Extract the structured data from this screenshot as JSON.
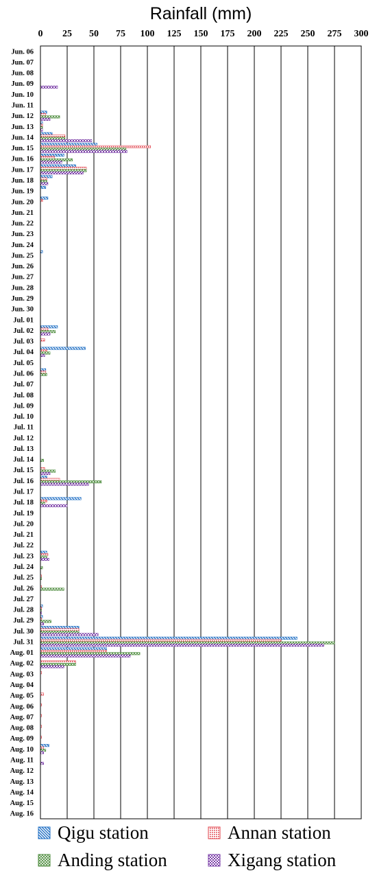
{
  "chart_data": {
    "type": "bar",
    "orientation": "horizontal",
    "title": "Rainfall (mm)",
    "xlabel": "Rainfall (mm)",
    "ylabel": "",
    "xlim": [
      0,
      300
    ],
    "x_ticks": [
      0,
      25,
      50,
      75,
      100,
      125,
      150,
      175,
      200,
      225,
      250,
      275,
      300
    ],
    "x_axis_position": "top",
    "grid": "vertical lines at every 25 mm",
    "legend_position": "bottom",
    "categories": [
      "Jun. 06",
      "Jun. 07",
      "Jun. 08",
      "Jun. 09",
      "Jun. 10",
      "Jun. 11",
      "Jun. 12",
      "Jun. 13",
      "Jun. 14",
      "Jun. 15",
      "Jun. 16",
      "Jun. 17",
      "Jun. 18",
      "Jun. 19",
      "Jun. 20",
      "Jun. 21",
      "Jun. 22",
      "Jun. 23",
      "Jun. 24",
      "Jun. 25",
      "Jun. 26",
      "Jun. 27",
      "Jun. 28",
      "Jun. 29",
      "Jun. 30",
      "Jul. 01",
      "Jul. 02",
      "Jul. 03",
      "Jul. 04",
      "Jul. 05",
      "Jul. 06",
      "Jul. 07",
      "Jul. 08",
      "Jul. 09",
      "Jul. 10",
      "Jul. 11",
      "Jul. 12",
      "Jul. 13",
      "Jul. 14",
      "Jul. 15",
      "Jul. 16",
      "Jul. 17",
      "Jul. 18",
      "Jul. 19",
      "Jul. 20",
      "Jul. 21",
      "Jul. 22",
      "Jul. 23",
      "Jul. 24",
      "Jul. 25",
      "Jul. 26",
      "Jul. 27",
      "Jul. 28",
      "Jul. 29",
      "Jul. 30",
      "Jul. 31",
      "Aug. 01",
      "Aug. 02",
      "Aug. 03",
      "Aug. 04",
      "Aug. 05",
      "Aug. 06",
      "Aug. 07",
      "Aug. 08",
      "Aug. 09",
      "Aug. 10",
      "Aug. 11",
      "Aug. 12",
      "Aug. 13",
      "Aug. 14",
      "Aug. 15",
      "Aug. 16"
    ],
    "series": [
      {
        "name": "Qigu station",
        "color": "#1f6fc4",
        "pattern": "diagonal-hatch",
        "values": [
          0,
          0,
          0,
          0,
          0,
          0,
          6,
          2,
          11,
          53,
          22,
          33,
          11,
          5,
          7,
          0,
          0,
          0,
          0,
          2,
          0,
          0,
          0,
          0,
          0,
          0,
          16,
          0,
          42,
          0,
          5,
          0,
          0,
          0,
          0,
          0,
          0,
          0,
          0,
          0,
          6,
          0,
          38,
          0,
          0,
          0,
          0,
          6,
          0,
          0,
          0,
          0,
          2,
          2,
          36,
          240,
          62,
          0,
          0,
          0,
          0,
          0,
          0,
          0,
          0,
          8,
          0,
          0,
          0,
          0,
          0,
          0
        ]
      },
      {
        "name": "Annan station",
        "color": "#e0404a",
        "pattern": "dots",
        "values": [
          0,
          0,
          0,
          0,
          0,
          0,
          5,
          2,
          23,
          103,
          13,
          43,
          6,
          0,
          2,
          0,
          0,
          0,
          0,
          0,
          0,
          0,
          0,
          0,
          0,
          0,
          7,
          4,
          6,
          0,
          5,
          0,
          0,
          0,
          0,
          0,
          0,
          0,
          0,
          4,
          18,
          0,
          6,
          0,
          0,
          0,
          0,
          7,
          0,
          1,
          1,
          0,
          1,
          1,
          36,
          225,
          62,
          33,
          1,
          0,
          3,
          1,
          1,
          1,
          1,
          3,
          0,
          0,
          0,
          0,
          0,
          0
        ]
      },
      {
        "name": "Anding station",
        "color": "#4a8a3a",
        "pattern": "crosshatch",
        "values": [
          0,
          0,
          0,
          0,
          0,
          0,
          18,
          2,
          23,
          80,
          30,
          43,
          6,
          0,
          0,
          0,
          0,
          0,
          0,
          0,
          0,
          0,
          0,
          0,
          0,
          0,
          14,
          0,
          9,
          0,
          6,
          0,
          0,
          0,
          0,
          0,
          0,
          0,
          3,
          14,
          57,
          0,
          4,
          0,
          0,
          0,
          0,
          6,
          2,
          1,
          22,
          0,
          1,
          10,
          36,
          275,
          93,
          33,
          0,
          0,
          0,
          0,
          0,
          0,
          0,
          5,
          0,
          0,
          0,
          0,
          0,
          0
        ]
      },
      {
        "name": "Xigang station",
        "color": "#7b3fa8",
        "pattern": "checker",
        "values": [
          0,
          0,
          0,
          16,
          0,
          0,
          9,
          2,
          48,
          81,
          20,
          40,
          7,
          0,
          0,
          0,
          0,
          0,
          0,
          0,
          0,
          0,
          0,
          0,
          0,
          0,
          9,
          0,
          4,
          0,
          0,
          0,
          0,
          0,
          0,
          0,
          0,
          0,
          0,
          9,
          45,
          0,
          25,
          0,
          0,
          0,
          0,
          8,
          0,
          0,
          0,
          0,
          1,
          3,
          54,
          265,
          84,
          22,
          0,
          0,
          0,
          0,
          0,
          0,
          0,
          3,
          3,
          0,
          0,
          0,
          0,
          0
        ]
      }
    ]
  }
}
